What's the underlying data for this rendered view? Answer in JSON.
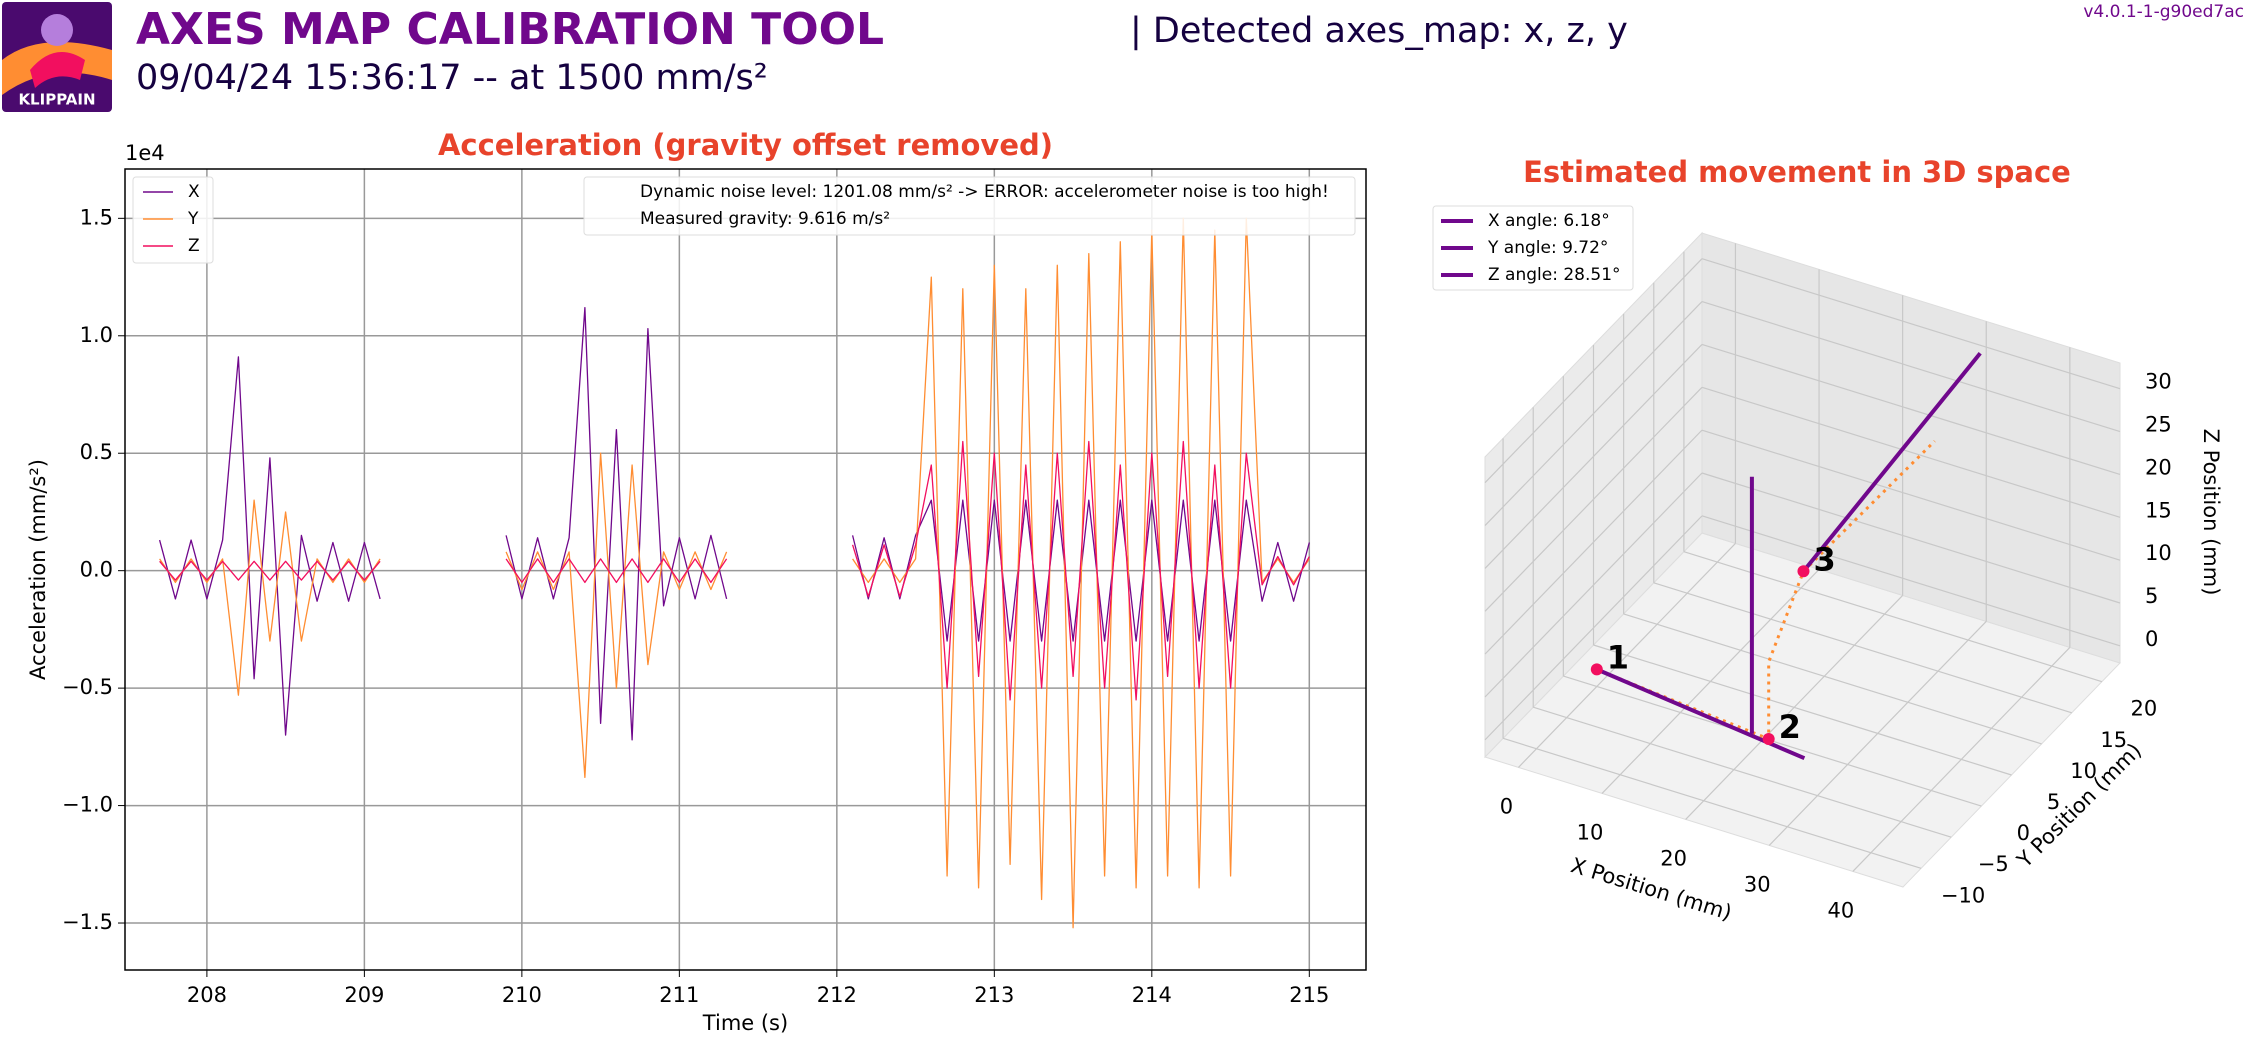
{
  "header": {
    "title": "AXES MAP CALIBRATION TOOL",
    "subtitle": "09/04/24 15:36:17 -- at 1500 mm/s²",
    "detected": "| Detected axes_map: x, z, y",
    "version": "v4.0.1-1-g90ed7ac",
    "logo_text": "KLIPPAIN"
  },
  "chart_data": [
    {
      "type": "line",
      "title": "Acceleration (gravity offset removed)",
      "xlabel": "Time (s)",
      "ylabel": "Acceleration (mm/s²)",
      "y_offset_label": "1e4",
      "xlim": [
        207.48,
        215.36
      ],
      "ylim": [
        -1.7,
        1.71
      ],
      "xticks": [
        208,
        209,
        210,
        211,
        212,
        213,
        214,
        215
      ],
      "yticks": [
        {
          "value": -1.5,
          "label": "−1.5"
        },
        {
          "value": -1,
          "label": "−1.0"
        },
        {
          "value": -0.5,
          "label": "−0.5"
        },
        {
          "value": 0,
          "label": "0.0"
        },
        {
          "value": 0.5,
          "label": "0.5"
        },
        {
          "value": 1,
          "label": "1.0"
        },
        {
          "value": 1.5,
          "label": "1.5"
        }
      ],
      "grid": true,
      "legend": "upper left",
      "annotations": [
        "Dynamic noise level: 1201.08 mm/s² -> ERROR: accelerometer noise is too high!",
        "Measured gravity: 9.616 m/s²"
      ],
      "x": [
        207.7,
        207.8,
        207.9,
        208.0,
        208.1,
        208.2,
        208.3,
        208.4,
        208.5,
        208.6,
        208.7,
        208.8,
        208.9,
        209.0,
        209.1,
        209.5,
        209.9,
        210.0,
        210.1,
        210.2,
        210.3,
        210.4,
        210.5,
        210.6,
        210.7,
        210.8,
        210.9,
        211.0,
        211.1,
        211.2,
        211.3,
        211.7,
        212.1,
        212.2,
        212.3,
        212.4,
        212.5,
        212.6,
        212.7,
        212.8,
        212.9,
        213.0,
        213.1,
        213.2,
        213.3,
        213.4,
        213.5,
        213.6,
        213.7,
        213.8,
        213.9,
        214.0,
        214.1,
        214.2,
        214.3,
        214.4,
        214.5,
        214.6,
        214.7,
        214.8,
        214.9,
        215.0
      ],
      "series": [
        {
          "name": "X",
          "color": "#70088c",
          "values": [
            0.13,
            -0.12,
            0.13,
            -0.12,
            0.13,
            0.91,
            -0.46,
            0.48,
            -0.7,
            0.15,
            -0.13,
            0.12,
            -0.13,
            0.12,
            -0.12,
            null,
            0.15,
            -0.12,
            0.14,
            -0.12,
            0.14,
            1.12,
            -0.65,
            0.6,
            -0.72,
            1.03,
            -0.15,
            0.14,
            -0.12,
            0.15,
            -0.12,
            null,
            0.15,
            -0.12,
            0.14,
            -0.12,
            0.15,
            0.3,
            -0.3,
            0.3,
            -0.3,
            0.3,
            -0.3,
            0.3,
            -0.3,
            0.3,
            -0.3,
            0.3,
            -0.3,
            0.3,
            -0.3,
            0.3,
            -0.3,
            0.3,
            -0.3,
            0.3,
            -0.3,
            0.3,
            -0.13,
            0.12,
            -0.13,
            0.12
          ]
        },
        {
          "name": "Y",
          "color": "#ff8d32",
          "values": [
            0.05,
            -0.05,
            0.05,
            -0.05,
            0.05,
            -0.53,
            0.3,
            -0.3,
            0.25,
            -0.3,
            0.05,
            -0.05,
            0.05,
            -0.05,
            0.05,
            null,
            0.08,
            -0.08,
            0.08,
            -0.08,
            0.08,
            -0.88,
            0.5,
            -0.5,
            0.45,
            -0.4,
            0.08,
            -0.08,
            0.08,
            -0.08,
            0.08,
            null,
            0.05,
            -0.05,
            0.05,
            -0.05,
            0.05,
            1.25,
            -1.3,
            1.2,
            -1.35,
            1.3,
            -1.25,
            1.2,
            -1.4,
            1.3,
            -1.52,
            1.35,
            -1.3,
            1.4,
            -1.35,
            1.45,
            -1.3,
            1.5,
            -1.35,
            1.45,
            -1.3,
            1.5,
            -0.05,
            0.05,
            -0.05,
            0.05
          ]
        },
        {
          "name": "Z",
          "color": "#f20f5f",
          "values": [
            0.04,
            -0.04,
            0.04,
            -0.04,
            0.04,
            -0.04,
            0.04,
            -0.04,
            0.04,
            -0.04,
            0.04,
            -0.04,
            0.04,
            -0.04,
            0.04,
            null,
            0.05,
            -0.05,
            0.05,
            -0.05,
            0.05,
            -0.05,
            0.05,
            -0.05,
            0.05,
            -0.05,
            0.05,
            -0.05,
            0.05,
            -0.05,
            0.05,
            null,
            0.11,
            -0.11,
            0.11,
            -0.11,
            0.11,
            0.45,
            -0.5,
            0.55,
            -0.45,
            0.5,
            -0.55,
            0.45,
            -0.5,
            0.5,
            -0.45,
            0.55,
            -0.5,
            0.45,
            -0.55,
            0.5,
            -0.45,
            0.55,
            -0.5,
            0.45,
            -0.5,
            0.5,
            -0.06,
            0.06,
            -0.06,
            0.06
          ]
        }
      ]
    },
    {
      "type": "line3d",
      "title": "Estimated movement in 3D space",
      "xlabel": "X Position (mm)",
      "ylabel": "Y Position (mm)",
      "zlabel": "Z Position (mm)",
      "xlim": [
        -4,
        46
      ],
      "ylim": [
        -13,
        23
      ],
      "zlim": [
        -2,
        33
      ],
      "xticks": [
        0,
        10,
        20,
        30,
        40
      ],
      "yticks": [
        {
          "value": -10,
          "label": "−10"
        },
        {
          "value": -5,
          "label": "−5"
        },
        0,
        5,
        10,
        15,
        20
      ],
      "zticks": [
        0,
        5,
        10,
        15,
        20,
        25,
        30
      ],
      "grid": true,
      "legend": "upper left",
      "series": [
        {
          "name": "X angle: 6.18°",
          "color": "#70088c",
          "x": [
            0,
            27
          ],
          "y": [
            0,
            -3
          ],
          "z": [
            0,
            0
          ]
        },
        {
          "name": "Y angle: 9.72°",
          "color": "#70088c",
          "x": [
            24,
            30
          ],
          "y": [
            1,
            22
          ],
          "z": [
            18,
            30
          ]
        },
        {
          "name": "Z angle: 28.51°",
          "color": "#70088c",
          "x": [
            20,
            20
          ],
          "y": [
            -2,
            -2
          ],
          "z": [
            0,
            30
          ]
        }
      ],
      "trajectory": {
        "color": "#ff8d32",
        "x": [
          0,
          22,
          22,
          24,
          26
        ],
        "y": [
          0,
          -2,
          -2,
          1,
          20
        ],
        "z": [
          0,
          0,
          9,
          18,
          20
        ]
      },
      "points": {
        "color": "#f20f5f",
        "labels": [
          "1",
          "2",
          "3"
        ],
        "x": [
          0,
          22,
          24
        ],
        "y": [
          0,
          -2,
          1
        ],
        "z": [
          0,
          0,
          18
        ]
      }
    }
  ]
}
